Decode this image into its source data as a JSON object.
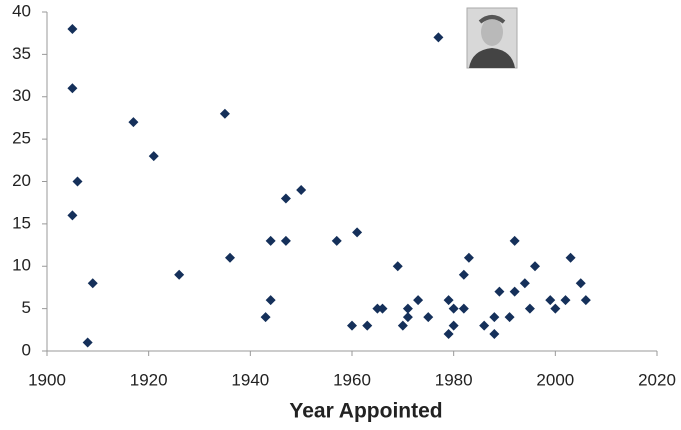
{
  "chart_data": {
    "type": "scatter",
    "x_label": "Year Appointed",
    "color": "#15305a",
    "x": [
      1905,
      1905,
      1906,
      1905,
      1909,
      1908,
      1917,
      1921,
      1926,
      1935,
      1936,
      1943,
      1944,
      1944,
      1947,
      1947,
      1950,
      1957,
      1961,
      1960,
      1963,
      1965,
      1966,
      1969,
      1970,
      1971,
      1971,
      1973,
      1975,
      1977,
      1979,
      1979,
      1980,
      1980,
      1982,
      1982,
      1983,
      1986,
      1988,
      1988,
      1989,
      1991,
      1992,
      1992,
      1994,
      1995,
      1996,
      1999,
      2000,
      2002,
      2003,
      2005,
      2006
    ],
    "values": [
      38,
      31,
      20,
      16,
      8,
      1,
      27,
      23,
      9,
      28,
      11,
      4,
      6,
      13,
      18,
      13,
      19,
      13,
      14,
      3,
      3,
      5,
      5,
      10,
      3,
      4,
      5,
      6,
      4,
      37,
      6,
      2,
      5,
      3,
      5,
      9,
      11,
      3,
      4,
      2,
      7,
      4,
      13,
      7,
      8,
      5,
      10,
      6,
      5,
      6,
      11,
      8,
      6
    ],
    "xlim": [
      1900,
      2020
    ],
    "xticks": [
      1900,
      1920,
      1940,
      1960,
      1980,
      2000,
      2020
    ],
    "ylim": [
      0,
      40
    ],
    "yticks": [
      0,
      5,
      10,
      15,
      20,
      25,
      30,
      35,
      40
    ]
  }
}
